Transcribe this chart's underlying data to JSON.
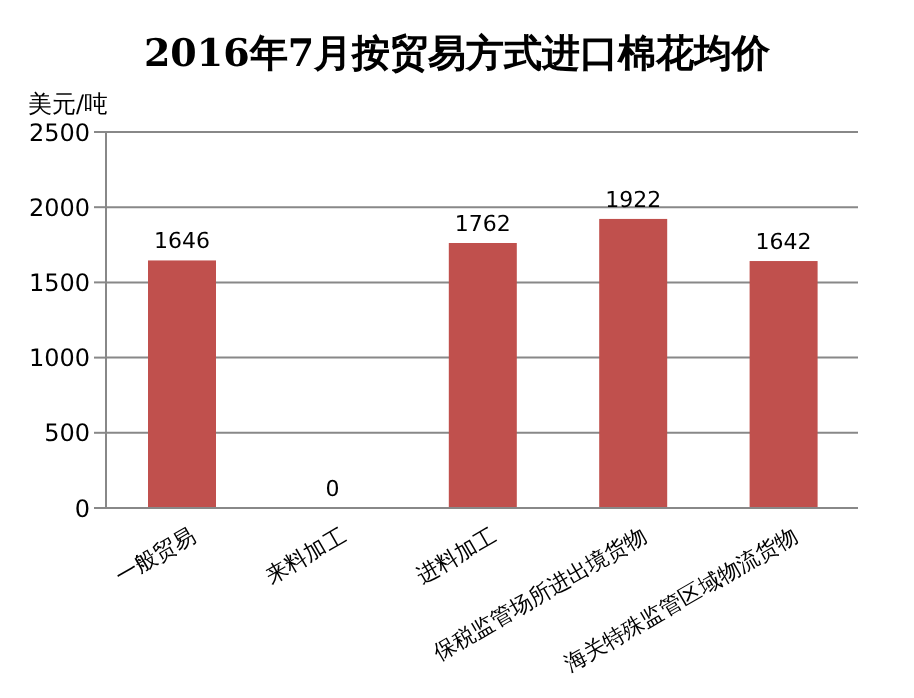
{
  "chart_data": {
    "type": "bar",
    "title": "2016年7月按贸易方式进口棉花均价",
    "ylabel": "美元/吨",
    "categories": [
      "一般贸易",
      "来料加工",
      "进料加工",
      "保税监管场所进出境货物",
      "海关特殊监管区域物流货物"
    ],
    "values": [
      1646,
      0,
      1762,
      1922,
      1642
    ],
    "color": "#c0504d",
    "ylim": [
      0,
      2500
    ],
    "yticks": [
      0,
      500,
      1000,
      1500,
      2000,
      2500
    ],
    "grid": "y",
    "data_labels": true
  }
}
